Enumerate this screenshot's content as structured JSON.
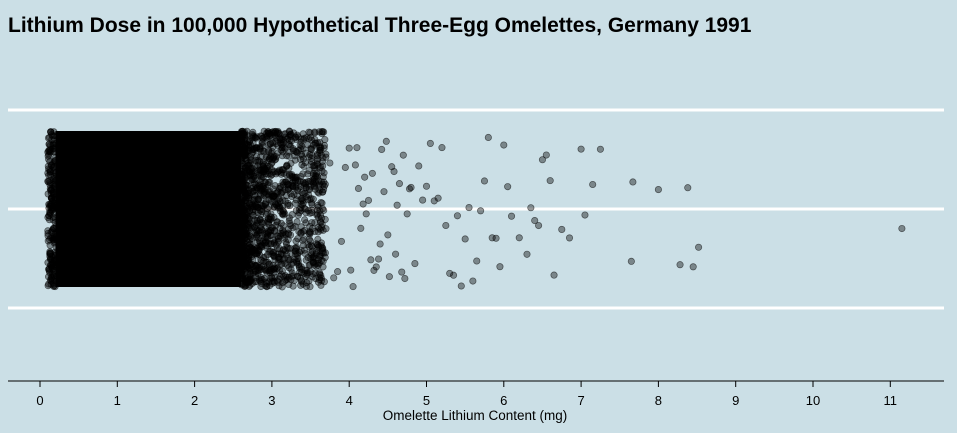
{
  "chart_data": {
    "type": "scatter",
    "title": "Lithium Dose in 100,000 Hypothetical Three-Egg Omelettes, Germany 1991",
    "xlabel": "Omelette Lithium Content (mg)",
    "ylabel": "",
    "xlim": [
      -0.4,
      11.7
    ],
    "x_ticks": [
      0,
      1,
      2,
      3,
      4,
      5,
      6,
      7,
      8,
      9,
      10,
      11
    ],
    "jitter": "vertical (no y variable)",
    "n_points": 100000,
    "dense_range": [
      0.2,
      2.6
    ],
    "grid": "horizontal only",
    "background_color": "#cbdfe6",
    "grid_color": "#ffffff",
    "point_color": "#000000",
    "point_opacity": 0.4,
    "outliers": [
      3.6,
      3.65,
      3.7,
      3.75,
      3.8,
      3.85,
      3.9,
      3.95,
      4.0,
      4.02,
      4.05,
      4.08,
      4.1,
      4.12,
      4.15,
      4.18,
      4.2,
      4.22,
      4.25,
      4.28,
      4.3,
      4.32,
      4.35,
      4.38,
      4.4,
      4.42,
      4.45,
      4.48,
      4.5,
      4.52,
      4.55,
      4.58,
      4.6,
      4.62,
      4.65,
      4.68,
      4.7,
      4.72,
      4.75,
      4.78,
      4.8,
      4.85,
      4.9,
      4.95,
      5.0,
      5.05,
      5.1,
      5.15,
      5.2,
      5.25,
      5.3,
      5.35,
      5.4,
      5.45,
      5.5,
      5.55,
      5.6,
      5.65,
      5.7,
      5.75,
      5.8,
      5.85,
      5.9,
      5.95,
      6.0,
      6.05,
      6.1,
      6.2,
      6.3,
      6.35,
      6.4,
      6.45,
      6.5,
      6.55,
      6.6,
      6.65,
      6.75,
      6.85,
      7.0,
      7.05,
      7.15,
      7.25,
      7.65,
      7.67,
      8.0,
      8.28,
      8.38,
      8.45,
      8.52,
      11.15
    ]
  }
}
